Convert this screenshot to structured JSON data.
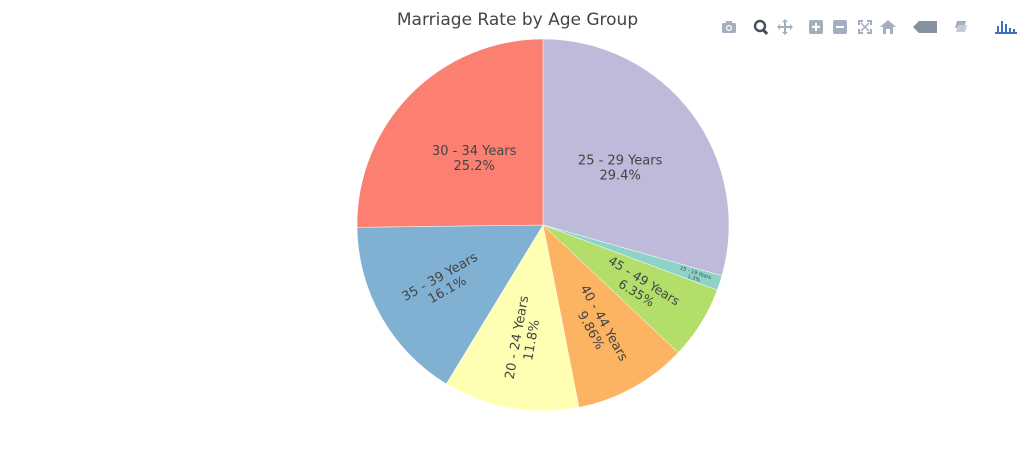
{
  "chart_data": {
    "type": "pie",
    "title": "Marriage Rate by Age Group",
    "slices": [
      {
        "label": "25 - 29 Years",
        "value": 29.4,
        "pct_text": "29.4%",
        "color": "#bebada"
      },
      {
        "label": "15 - 19 Years",
        "value": 1.3,
        "pct_text": "1.3%",
        "color": "#8dd3c7"
      },
      {
        "label": "45 - 49 Years",
        "value": 6.35,
        "pct_text": "6.35%",
        "color": "#b3de69"
      },
      {
        "label": "40 - 44 Years",
        "value": 9.86,
        "pct_text": "9.86%",
        "color": "#fdb462"
      },
      {
        "label": "20 - 24 Years",
        "value": 11.8,
        "pct_text": "11.8%",
        "color": "#ffffb3"
      },
      {
        "label": "35 - 39 Years",
        "value": 16.1,
        "pct_text": "16.1%",
        "color": "#80b1d3"
      },
      {
        "label": "30 - 34 Years",
        "value": 25.2,
        "pct_text": "25.2%",
        "color": "#fb8072"
      }
    ],
    "direction": "clockwise",
    "start": "12 o'clock"
  },
  "modebar": {
    "buttons": [
      {
        "name": "camera-icon",
        "title": "Download plot as a png"
      },
      {
        "name": "zoom-icon",
        "title": "Zoom"
      },
      {
        "name": "pan-icon",
        "title": "Pan"
      },
      {
        "name": "zoom-in-icon",
        "title": "Zoom in"
      },
      {
        "name": "zoom-out-icon",
        "title": "Zoom out"
      },
      {
        "name": "autoscale-icon",
        "title": "Autoscale"
      },
      {
        "name": "home-icon",
        "title": "Reset axes"
      },
      {
        "name": "hover-closest-icon",
        "title": "Show closest data on hover"
      },
      {
        "name": "hover-compare-icon",
        "title": "Compare data on hover"
      },
      {
        "name": "plotly-logo-icon",
        "title": "Produced with Plotly"
      }
    ],
    "icon_color": "#a3aec0",
    "logo_color": "#3f6fc4"
  }
}
